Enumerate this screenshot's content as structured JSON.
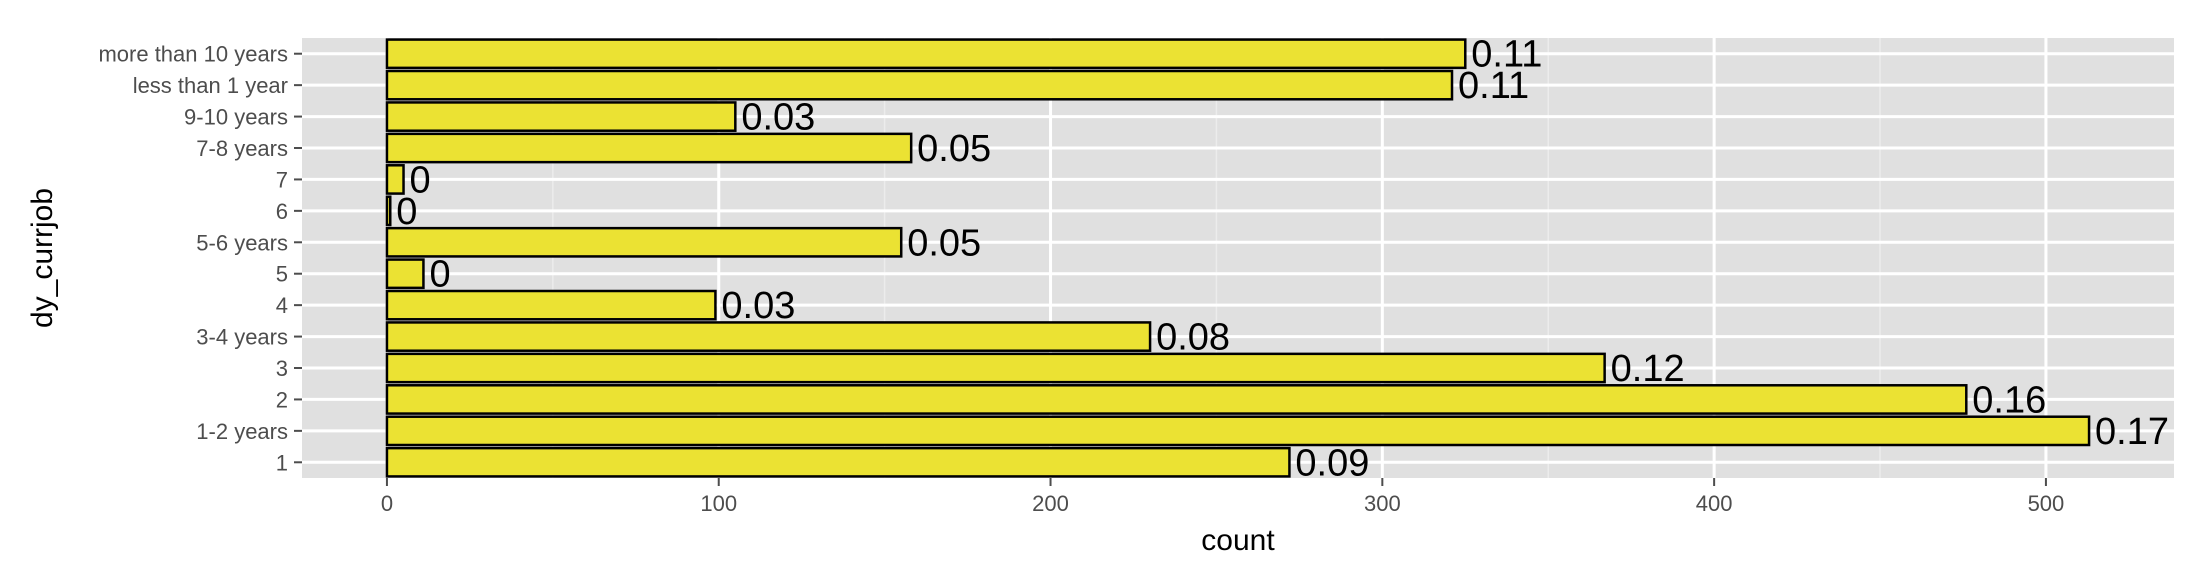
{
  "chart_data": {
    "type": "bar",
    "orientation": "horizontal",
    "title": "",
    "xlabel": "count",
    "ylabel": "dy_currjob",
    "categories": [
      "1",
      "1-2 years",
      "2",
      "3",
      "3-4 years",
      "4",
      "5",
      "5-6 years",
      "6",
      "7",
      "7-8 years",
      "9-10 years",
      "less than 1 year",
      "more than 10 years"
    ],
    "values": [
      272,
      513,
      476,
      367,
      230,
      99,
      11,
      155,
      1,
      5,
      158,
      105,
      321,
      325
    ],
    "labels": [
      "0.09",
      "0.17",
      "0.16",
      "0.12",
      "0.08",
      "0.03",
      "0",
      "0.05",
      "0",
      "0",
      "0.05",
      "0.03",
      "0.11",
      "0.11"
    ],
    "xticks": [
      0,
      100,
      200,
      300,
      400,
      500
    ],
    "xtick_labels": [
      "0",
      "100",
      "200",
      "300",
      "400",
      "500"
    ],
    "xlim": [
      -25.6,
      538.6
    ],
    "grid": true,
    "colors": {
      "bar_fill": "#ebe233",
      "bar_stroke": "#000000",
      "panel": "#e0e0e0",
      "grid_major": "#ffffff",
      "grid_minor": "#ececec",
      "tick_text": "#4d4d4d"
    }
  }
}
